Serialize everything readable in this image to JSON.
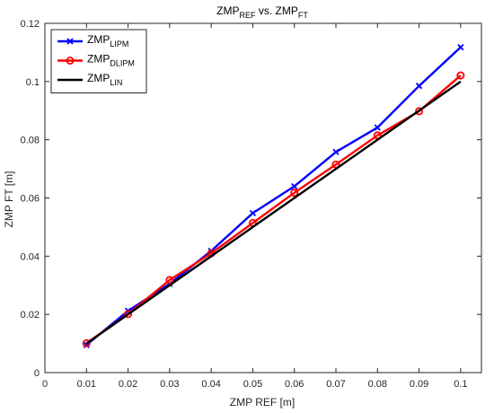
{
  "chart_data": {
    "type": "line",
    "title": {
      "main1": "ZMP",
      "sub1": "REF",
      "mid": " vs. ZMP",
      "sub2": "FT"
    },
    "xlabel": "ZMP REF [m]",
    "ylabel": "ZMP FT [m]",
    "xlim": [
      0,
      0.105
    ],
    "ylim": [
      0,
      0.12
    ],
    "xticks": [
      0,
      0.01,
      0.02,
      0.03,
      0.04,
      0.05,
      0.06,
      0.07,
      0.08,
      0.09,
      0.1
    ],
    "xtick_labels": [
      "0",
      "0.01",
      "0.02",
      "0.03",
      "0.04",
      "0.05",
      "0.06",
      "0.07",
      "0.08",
      "0.09",
      "0.1"
    ],
    "yticks": [
      0,
      0.02,
      0.04,
      0.06,
      0.08,
      0.1,
      0.12
    ],
    "ytick_labels": [
      "0",
      "0.02",
      "0.04",
      "0.06",
      "0.08",
      "0.1",
      "0.12"
    ],
    "grid": false,
    "legend_position": "top-left",
    "x": [
      0.01,
      0.02,
      0.03,
      0.04,
      0.05,
      0.06,
      0.07,
      0.08,
      0.09,
      0.1
    ],
    "series": [
      {
        "name_main": "ZMP",
        "name_sub": "LIPM",
        "color": "#0000ff",
        "marker": "x",
        "values": [
          0.0095,
          0.0212,
          0.0305,
          0.0418,
          0.0548,
          0.064,
          0.0758,
          0.0842,
          0.0985,
          0.1118
        ]
      },
      {
        "name_main": "ZMP",
        "name_sub": "DLIPM",
        "color": "#ff0000",
        "marker": "o",
        "values": [
          0.0101,
          0.0201,
          0.0318,
          0.041,
          0.0514,
          0.0618,
          0.0715,
          0.0815,
          0.0898,
          0.1021
        ]
      },
      {
        "name_main": "ZMP",
        "name_sub": "LIN",
        "color": "#000000",
        "marker": "none",
        "values": [
          0.01,
          0.02,
          0.03,
          0.04,
          0.05,
          0.06,
          0.07,
          0.08,
          0.09,
          0.1
        ]
      }
    ]
  }
}
